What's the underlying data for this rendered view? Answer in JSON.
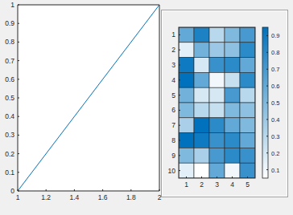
{
  "chart_data": [
    {
      "type": "line",
      "x": [
        1,
        2
      ],
      "series": [
        {
          "values": [
            0,
            1
          ],
          "color": "#0072bd"
        }
      ],
      "xlim": [
        1,
        2
      ],
      "xticks": [
        1,
        1.2,
        1.4,
        1.6,
        1.8,
        2
      ],
      "ylim": [
        0,
        1
      ],
      "yticks": [
        0,
        0.1,
        0.2,
        0.3,
        0.4,
        0.5,
        0.6,
        0.7,
        0.8,
        0.9,
        1
      ],
      "grid": false
    },
    {
      "type": "heatmap",
      "color": "#0072bd",
      "xlim": [
        0.5,
        5.5
      ],
      "xticks": [
        1,
        2,
        3,
        4,
        5
      ],
      "ylim": [
        0.5,
        10.5
      ],
      "yticks": [
        1,
        2,
        3,
        4,
        5,
        6,
        7,
        8,
        9,
        10
      ],
      "cells": [
        [
          0.6,
          0.85,
          0.3,
          0.5,
          0.7
        ],
        [
          0.15,
          0.55,
          0.4,
          0.45,
          0.8
        ],
        [
          0.9,
          0.2,
          0.75,
          0.8,
          0.6
        ],
        [
          0.95,
          0.6,
          0.1,
          0.25,
          0.8
        ],
        [
          0.55,
          0.2,
          0.2,
          0.7,
          0.3
        ],
        [
          0.5,
          0.3,
          0.25,
          0.5,
          0.45
        ],
        [
          0.35,
          0.95,
          0.8,
          0.6,
          0.5
        ],
        [
          0.95,
          0.9,
          0.75,
          0.8,
          0.6
        ],
        [
          0.5,
          0.35,
          0.7,
          0.8,
          0.75
        ],
        [
          0.15,
          0.05,
          0.6,
          0.1,
          0.75
        ]
      ],
      "color_range": [
        0.05,
        0.95
      ],
      "color_ticks": [
        0.1,
        0.2,
        0.3,
        0.4,
        0.5,
        0.6,
        0.7,
        0.8,
        0.9
      ],
      "grid": false
    }
  ]
}
